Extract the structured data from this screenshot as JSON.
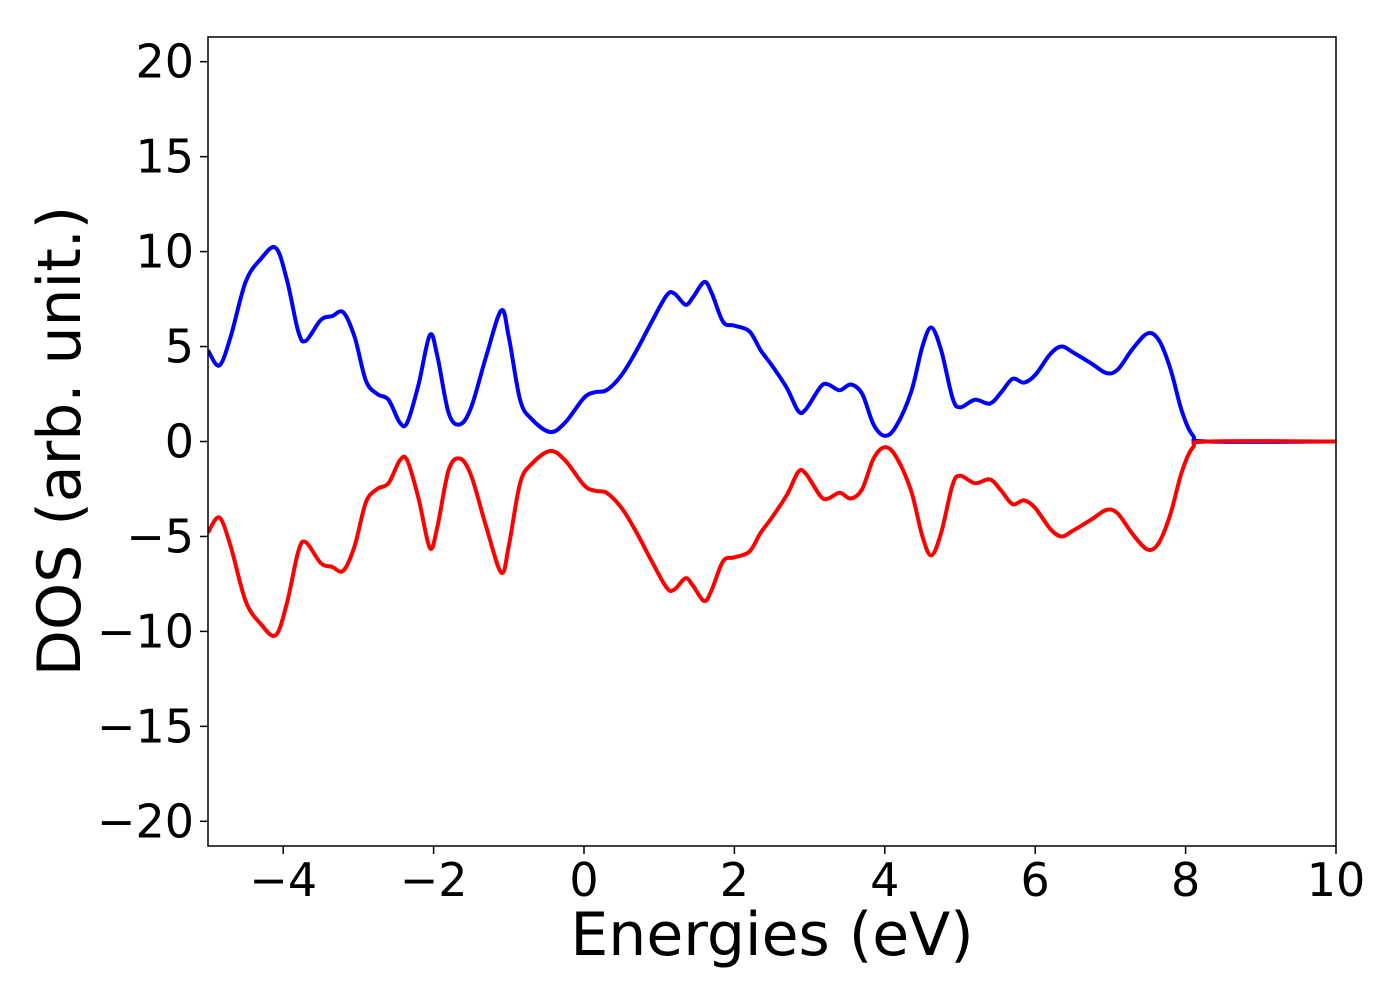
{
  "chart_data": {
    "type": "line",
    "x_label": "Energies (eV)",
    "y_label": "DOS (arb. unit.)",
    "x": [
      -5,
      -4.85,
      -4.7,
      -4.5,
      -4.3,
      -4.1,
      -3.95,
      -3.8,
      -3.7,
      -3.5,
      -3.35,
      -3.2,
      -3.05,
      -2.9,
      -2.75,
      -2.6,
      -2.45,
      -2.35,
      -2.2,
      -2.05,
      -1.95,
      -1.8,
      -1.65,
      -1.5,
      -1.3,
      -1.1,
      -1.0,
      -0.85,
      -0.7,
      -0.45,
      -0.25,
      0,
      0.15,
      0.3,
      0.5,
      0.7,
      0.9,
      1.1,
      1.2,
      1.35,
      1.45,
      1.6,
      1.7,
      1.85,
      2.0,
      2.2,
      2.35,
      2.5,
      2.7,
      2.85,
      2.95,
      3.15,
      3.25,
      3.4,
      3.55,
      3.7,
      3.85,
      4.0,
      4.15,
      4.35,
      4.5,
      4.62,
      4.75,
      4.9,
      5.0,
      5.2,
      5.4,
      5.55,
      5.7,
      5.85,
      6.0,
      6.2,
      6.35,
      6.5,
      6.75,
      6.95,
      7.1,
      7.3,
      7.5,
      7.65,
      7.8,
      7.95,
      8.1,
      8.3,
      10
    ],
    "series": [
      {
        "color": "#0000ff",
        "values": [
          4.8,
          4.0,
          5.5,
          8.4,
          9.6,
          10.2,
          8.5,
          5.8,
          5.3,
          6.4,
          6.6,
          6.8,
          5.5,
          3.2,
          2.5,
          2.2,
          1.0,
          1.0,
          3.0,
          5.6,
          4.5,
          1.5,
          0.9,
          1.8,
          4.5,
          6.9,
          5.5,
          2.2,
          1.2,
          0.5,
          1.0,
          2.3,
          2.6,
          2.7,
          3.5,
          4.8,
          6.3,
          7.7,
          7.8,
          7.2,
          7.6,
          8.4,
          7.8,
          6.3,
          6.1,
          5.8,
          4.8,
          4.0,
          2.8,
          1.6,
          1.7,
          2.9,
          3.0,
          2.7,
          3.0,
          2.5,
          0.9,
          0.3,
          0.8,
          2.6,
          5.0,
          6.0,
          4.8,
          2.3,
          1.8,
          2.2,
          2.0,
          2.6,
          3.3,
          3.1,
          3.5,
          4.6,
          5.0,
          4.7,
          4.1,
          3.6,
          3.8,
          4.9,
          5.7,
          5.3,
          3.8,
          1.6,
          0.3,
          0.0,
          0.0
        ]
      },
      {
        "color": "#ff0000",
        "values": [
          -4.8,
          -4.0,
          -5.5,
          -8.4,
          -9.6,
          -10.2,
          -8.5,
          -5.8,
          -5.3,
          -6.4,
          -6.6,
          -6.8,
          -5.5,
          -3.2,
          -2.5,
          -2.2,
          -1.0,
          -1.0,
          -3.0,
          -5.6,
          -4.5,
          -1.5,
          -0.9,
          -1.8,
          -4.5,
          -6.9,
          -5.5,
          -2.2,
          -1.2,
          -0.5,
          -1.0,
          -2.3,
          -2.6,
          -2.7,
          -3.5,
          -4.8,
          -6.3,
          -7.7,
          -7.8,
          -7.2,
          -7.6,
          -8.4,
          -7.8,
          -6.3,
          -6.1,
          -5.8,
          -4.8,
          -4.0,
          -2.8,
          -1.6,
          -1.7,
          -2.9,
          -3.0,
          -2.7,
          -3.0,
          -2.5,
          -0.9,
          -0.3,
          -0.8,
          -2.6,
          -5.0,
          -6.0,
          -4.8,
          -2.3,
          -1.8,
          -2.2,
          -2.0,
          -2.6,
          -3.3,
          -3.1,
          -3.5,
          -4.6,
          -5.0,
          -4.7,
          -4.1,
          -3.6,
          -3.8,
          -4.9,
          -5.7,
          -5.3,
          -3.8,
          -1.6,
          -0.3,
          0.0,
          0.0
        ]
      }
    ],
    "xlim": [
      -5,
      10
    ],
    "ylim": [
      -21.3,
      21.3
    ],
    "xticks": [
      {
        "value": -4,
        "label": "−4"
      },
      {
        "value": -2,
        "label": "−2"
      },
      0,
      2,
      4,
      6,
      8,
      10
    ],
    "yticks": [
      {
        "value": -20,
        "label": "−20"
      },
      {
        "value": -15,
        "label": "−15"
      },
      {
        "value": -10,
        "label": "−10"
      },
      {
        "value": -5,
        "label": "−5"
      },
      0,
      5,
      10,
      15,
      20
    ]
  }
}
